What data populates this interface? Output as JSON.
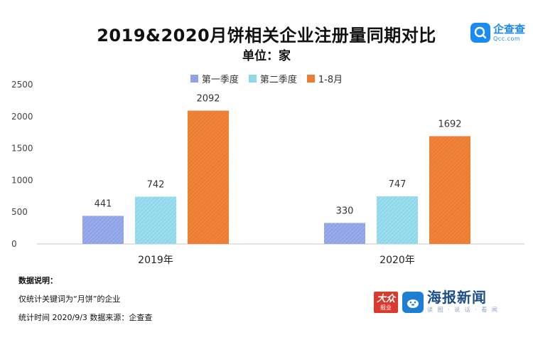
{
  "title": "2019&2020月饼相关企业注册量同期对比",
  "subtitle": "单位：家",
  "logos": {
    "qcc_name": "企查查",
    "qcc_domain": "Qcc.com",
    "dazhong_top": "大众",
    "dazhong_bottom": "报业",
    "haibao_name": "海报新闻",
    "haibao_sub": "读 图 · 说 话 · 看 闻"
  },
  "notes": {
    "heading": "数据说明：",
    "line1": "仅统计关键词为“月饼”的企业",
    "line2": "统计时间 2020/9/3    数据来源：企查查"
  },
  "colors": {
    "q1": "#8fa3e6",
    "q2": "#8fd8ea",
    "jan_aug": "#ed7d31"
  },
  "chart_data": {
    "type": "bar",
    "title": "2019&2020月饼相关企业注册量同期对比",
    "subtitle": "单位：家",
    "categories": [
      "2019年",
      "2020年"
    ],
    "series": [
      {
        "name": "第一季度",
        "values": [
          441,
          330
        ]
      },
      {
        "name": "第二季度",
        "values": [
          742,
          747
        ]
      },
      {
        "name": "1-8月",
        "values": [
          2092,
          1692
        ]
      }
    ],
    "ylim": [
      0,
      2500
    ],
    "yticks": [
      "0",
      "500",
      "1000",
      "1500",
      "2000",
      "2500"
    ],
    "grid": false,
    "legend": "top-center",
    "data_labels": true
  }
}
